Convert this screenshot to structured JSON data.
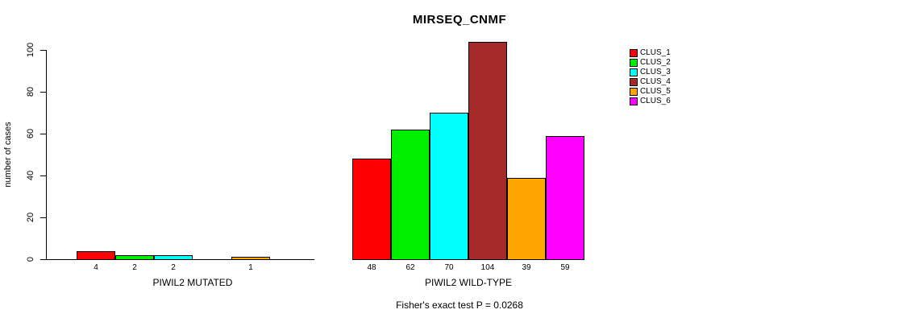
{
  "title": "MIRSEQ_CNMF",
  "ylabel": "number of cases",
  "subtitle": "Fisher's exact test P = 0.0268",
  "chart_data": {
    "type": "bar",
    "title": "MIRSEQ_CNMF",
    "xlabel": "",
    "ylabel": "number of cases",
    "ylim": [
      0,
      104
    ],
    "yticks": [
      0,
      20,
      40,
      60,
      80,
      100
    ],
    "grid": false,
    "legend_position": "right",
    "series_names": [
      "CLUS_1",
      "CLUS_2",
      "CLUS_3",
      "CLUS_4",
      "CLUS_5",
      "CLUS_6"
    ],
    "colors": [
      "#ff0000",
      "#00ee00",
      "#00ffff",
      "#a52a2a",
      "#ffa500",
      "#ff00ff"
    ],
    "groups": [
      {
        "label": "PIWIL2 MUTATED",
        "values": [
          4,
          2,
          2,
          0,
          1,
          0
        ]
      },
      {
        "label": "PIWIL2 WILD-TYPE",
        "values": [
          48,
          62,
          70,
          104,
          39,
          59
        ]
      }
    ],
    "bar_value_labels": true,
    "annotation": "Fisher's exact test P = 0.0268"
  }
}
